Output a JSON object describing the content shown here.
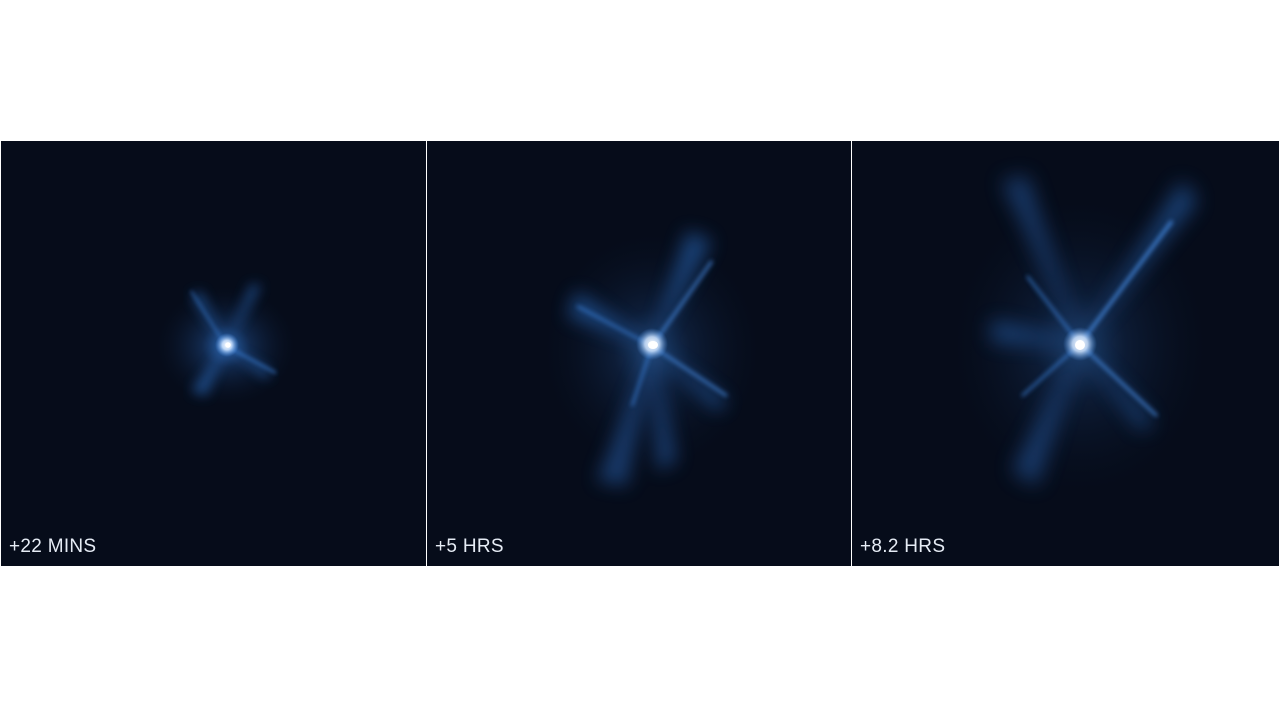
{
  "panels": [
    {
      "caption": "+22 MINS"
    },
    {
      "caption": "+5 HRS"
    },
    {
      "caption": "+8.2 HRS"
    }
  ],
  "colors": {
    "background": "#ffffff",
    "sky": "#060c1a",
    "ejecta": "#2f78d6",
    "core": "#ffffff",
    "caption_text": "#e6ecf5"
  }
}
